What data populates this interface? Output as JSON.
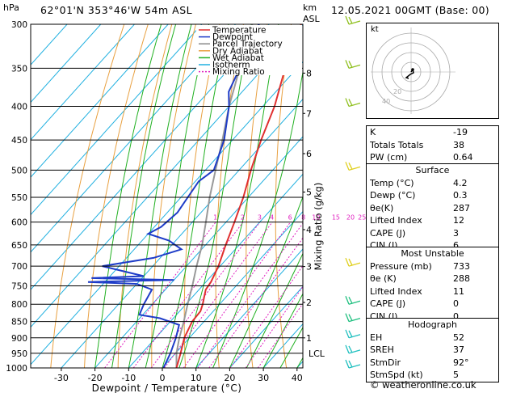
{
  "header": {
    "location": "62°01'N  353°46'W  54m  ASL",
    "valid": "12.05.2021  00GMT  (Base: 00)",
    "pressure_unit": "hPa",
    "km_unit": "km",
    "asl_unit": "ASL"
  },
  "chart_data": {
    "type": "skew-t",
    "pressure_levels": [
      300,
      350,
      400,
      450,
      500,
      550,
      600,
      650,
      700,
      750,
      800,
      850,
      900,
      950,
      1000
    ],
    "x_ticks": [
      -30,
      -20,
      -10,
      0,
      10,
      20,
      30,
      40
    ],
    "xlabel": "Dewpoint / Temperature (°C)",
    "ylabel_right": "Mixing Ratio (g/kg)",
    "km_ticks": [
      {
        "km": "8",
        "p": 356
      },
      {
        "km": "7",
        "p": 410
      },
      {
        "km": "6",
        "p": 472
      },
      {
        "km": "5",
        "p": 540
      },
      {
        "km": "4",
        "p": 616
      },
      {
        "km": "3",
        "p": 701
      },
      {
        "km": "2",
        "p": 795
      },
      {
        "km": "1",
        "p": 900
      }
    ],
    "lcl_label": "LCL",
    "lcl_p": 950,
    "mixing_ratio_labels": [
      "1",
      "2",
      "3",
      "4",
      "6",
      "8",
      "10",
      "15",
      "20",
      "25"
    ],
    "legend": [
      {
        "name": "Temperature",
        "color": "#e03030",
        "dash": "none"
      },
      {
        "name": "Dewpoint",
        "color": "#1e3cc8",
        "dash": "none"
      },
      {
        "name": "Parcel Trajectory",
        "color": "#888888",
        "dash": "none"
      },
      {
        "name": "Dry Adiabat",
        "color": "#e8a040",
        "dash": "none"
      },
      {
        "name": "Wet Adiabat",
        "color": "#20b020",
        "dash": "none"
      },
      {
        "name": "Isotherm",
        "color": "#20b0e0",
        "dash": "none"
      },
      {
        "name": "Mixing Ratio",
        "color": "#e020c0",
        "dash": "2,2"
      }
    ],
    "temperature": [
      [
        1000,
        4.2
      ],
      [
        950,
        1.5
      ],
      [
        900,
        -1.5
      ],
      [
        850,
        -3.5
      ],
      [
        820,
        -3.8
      ],
      [
        800,
        -5.0
      ],
      [
        780,
        -6.5
      ],
      [
        760,
        -8.0
      ],
      [
        740,
        -8.5
      ],
      [
        700,
        -10.5
      ],
      [
        650,
        -14.0
      ],
      [
        600,
        -17.5
      ],
      [
        550,
        -21.5
      ],
      [
        500,
        -26.5
      ],
      [
        450,
        -31.5
      ],
      [
        400,
        -36.5
      ],
      [
        350,
        -43.5
      ],
      [
        300,
        -50.5
      ]
    ],
    "dewpoint": [
      [
        1000,
        0.3
      ],
      [
        950,
        -1.5
      ],
      [
        900,
        -4.0
      ],
      [
        860,
        -6.5
      ],
      [
        840,
        -14.0
      ],
      [
        830,
        -21.0
      ],
      [
        800,
        -22.5
      ],
      [
        760,
        -24.0
      ],
      [
        745,
        -30.0
      ],
      [
        740,
        -45.0
      ],
      [
        735,
        -20.0
      ],
      [
        730,
        -45.0
      ],
      [
        725,
        -30.0
      ],
      [
        700,
        -45.0
      ],
      [
        680,
        -32.0
      ],
      [
        660,
        -26.0
      ],
      [
        640,
        -32.0
      ],
      [
        625,
        -40.0
      ],
      [
        610,
        -38.0
      ],
      [
        580,
        -37.0
      ],
      [
        550,
        -38.0
      ],
      [
        520,
        -39.0
      ],
      [
        500,
        -37.5
      ],
      [
        450,
        -42.5
      ],
      [
        400,
        -50.0
      ],
      [
        380,
        -54.0
      ],
      [
        350,
        -57.0
      ],
      [
        320,
        -62.0
      ],
      [
        300,
        -63.0
      ]
    ],
    "parcel": [
      [
        1000,
        4.2
      ],
      [
        950,
        0.3
      ],
      [
        900,
        -3.0
      ],
      [
        850,
        -6.0
      ],
      [
        800,
        -9.5
      ],
      [
        750,
        -13.0
      ],
      [
        700,
        -17.0
      ],
      [
        650,
        -21.0
      ],
      [
        600,
        -26.0
      ],
      [
        550,
        -31.5
      ],
      [
        500,
        -37.0
      ],
      [
        450,
        -43.0
      ],
      [
        400,
        -50.0
      ],
      [
        350,
        -57.0
      ],
      [
        300,
        -65.0
      ]
    ],
    "wind_barbs": [
      {
        "p": 300,
        "color": "#90c020"
      },
      {
        "p": 350,
        "color": "#90c020"
      },
      {
        "p": 400,
        "color": "#90c020"
      },
      {
        "p": 500,
        "color": "#e0d020"
      },
      {
        "p": 700,
        "color": "#e0d020"
      },
      {
        "p": 800,
        "color": "#20c080"
      },
      {
        "p": 850,
        "color": "#20c080"
      },
      {
        "p": 900,
        "color": "#20c0c0"
      },
      {
        "p": 950,
        "color": "#20c0c0"
      },
      {
        "p": 1000,
        "color": "#20c0c0"
      }
    ]
  },
  "hodograph": {
    "label": "kt",
    "ring_labels": [
      "20",
      "40"
    ]
  },
  "indices": {
    "rows": [
      {
        "label": "K",
        "value": "-19"
      },
      {
        "label": "Totals Totals",
        "value": "38"
      },
      {
        "label": "PW (cm)",
        "value": "0.64"
      }
    ]
  },
  "surface": {
    "title": "Surface",
    "rows": [
      {
        "label": "Temp (°C)",
        "value": "4.2"
      },
      {
        "label": "Dewp (°C)",
        "value": "0.3"
      },
      {
        "label": "θe(K)",
        "value": "287"
      },
      {
        "label": "Lifted Index",
        "value": "12"
      },
      {
        "label": "CAPE (J)",
        "value": "3"
      },
      {
        "label": "CIN (J)",
        "value": "6"
      }
    ]
  },
  "most_unstable": {
    "title": "Most Unstable",
    "rows": [
      {
        "label": "Pressure (mb)",
        "value": "733"
      },
      {
        "label": "θe (K)",
        "value": "288"
      },
      {
        "label": "Lifted Index",
        "value": "11"
      },
      {
        "label": "CAPE (J)",
        "value": "0"
      },
      {
        "label": "CIN (J)",
        "value": "0"
      }
    ]
  },
  "hodograph_params": {
    "title": "Hodograph",
    "rows": [
      {
        "label": "EH",
        "value": "52"
      },
      {
        "label": "SREH",
        "value": "37"
      },
      {
        "label": "StmDir",
        "value": "92°"
      },
      {
        "label": "StmSpd (kt)",
        "value": "5"
      }
    ]
  },
  "footer": "© weatheronline.co.uk"
}
